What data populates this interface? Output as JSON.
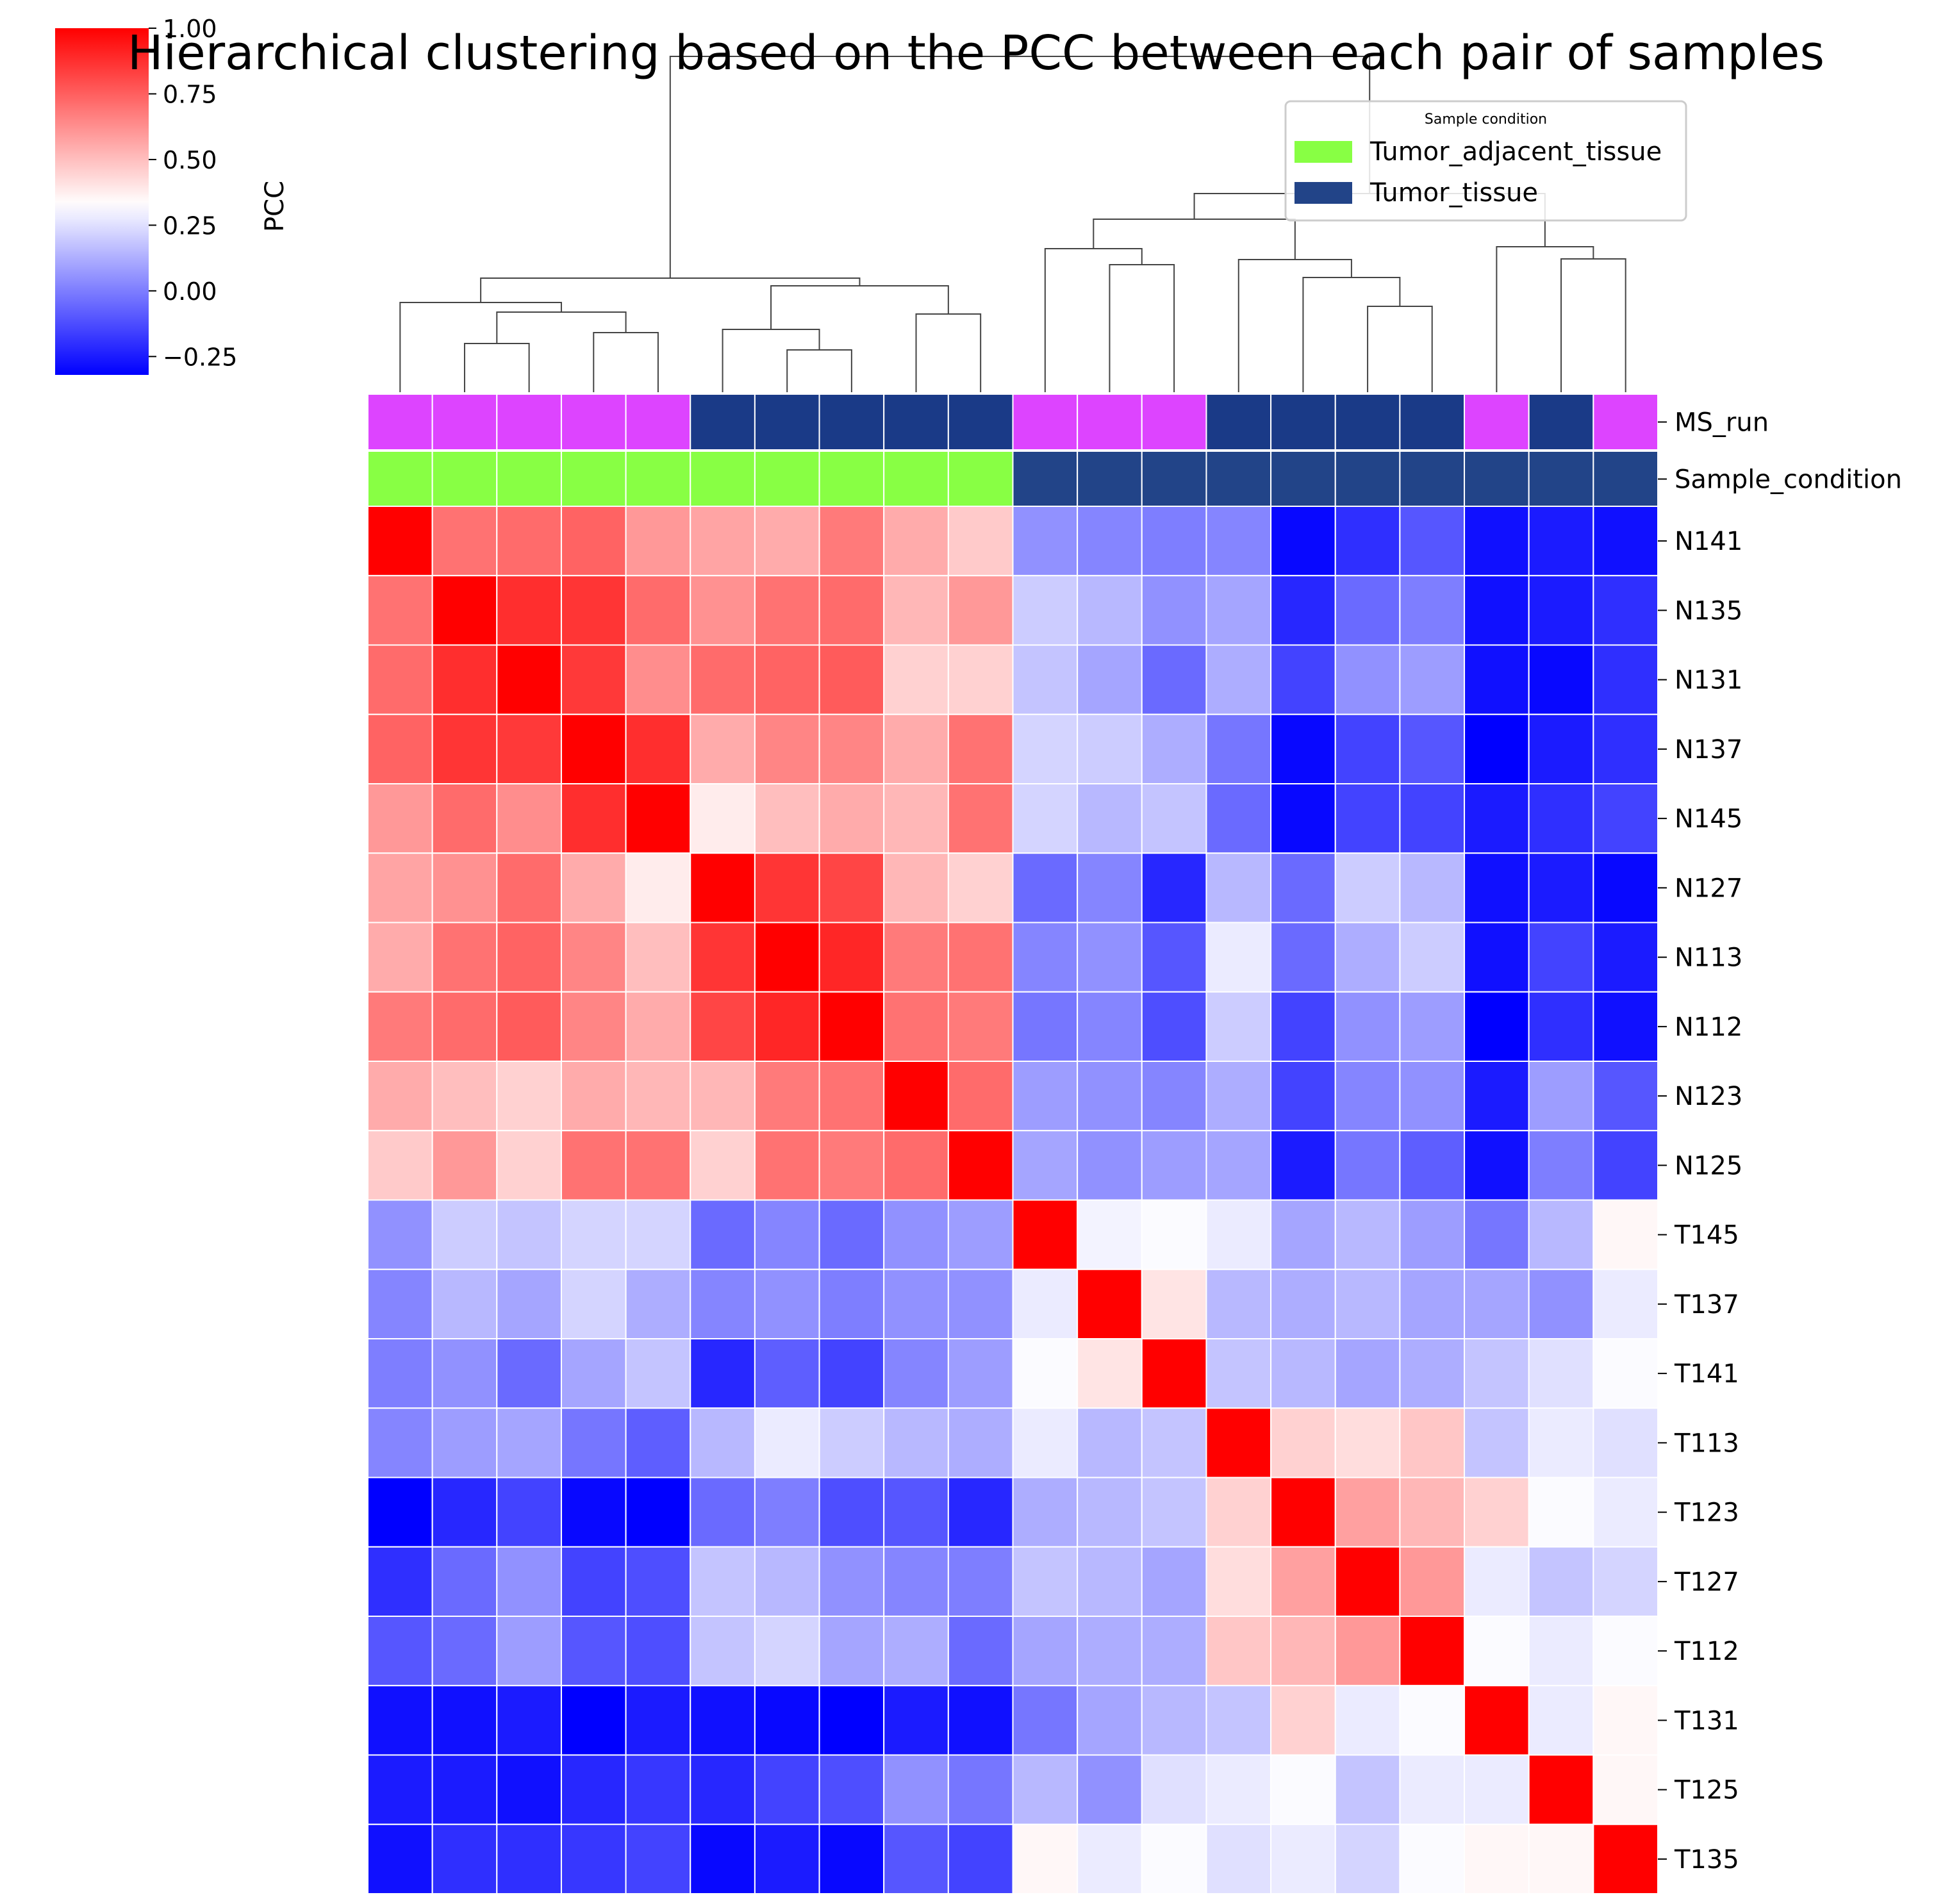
{
  "chart_data": {
    "type": "heatmap",
    "title": "Hierarchical clustering based on the PCC between each pair of samples",
    "samples": [
      "N141",
      "N135",
      "N131",
      "N137",
      "N145",
      "N127",
      "N113",
      "N112",
      "N123",
      "N125",
      "T145",
      "T137",
      "T141",
      "T113",
      "T123",
      "T127",
      "T112",
      "T131",
      "T125",
      "T135"
    ],
    "colorbar": {
      "label": "PCC",
      "vmin": -0.32,
      "vmax": 1.0,
      "center": 0.33,
      "ticks": [
        1.0,
        0.75,
        0.5,
        0.25,
        0.0,
        -0.25
      ],
      "tick_labels": [
        "1.00",
        "0.75",
        "0.50",
        "0.25",
        "0.00",
        "−0.25"
      ],
      "colors": [
        "#0000ff",
        "#ffffff",
        "#ff0000"
      ]
    },
    "annotation_rows": [
      {
        "name": "MS_run",
        "colors": [
          "#dd44ff",
          "#dd44ff",
          "#dd44ff",
          "#dd44ff",
          "#dd44ff",
          "#1a3a87",
          "#1a3a87",
          "#1a3a87",
          "#1a3a87",
          "#1a3a87",
          "#dd44ff",
          "#dd44ff",
          "#dd44ff",
          "#1a3a87",
          "#1a3a87",
          "#1a3a87",
          "#1a3a87",
          "#dd44ff",
          "#1a3a87",
          "#dd44ff"
        ]
      },
      {
        "name": "Sample_condition",
        "colors": [
          "#88ff44",
          "#88ff44",
          "#88ff44",
          "#88ff44",
          "#88ff44",
          "#88ff44",
          "#88ff44",
          "#88ff44",
          "#88ff44",
          "#88ff44",
          "#224488",
          "#224488",
          "#224488",
          "#224488",
          "#224488",
          "#224488",
          "#224488",
          "#224488",
          "#224488",
          "#224488"
        ]
      }
    ],
    "legend": {
      "title": "Sample condition",
      "placement": "top-right",
      "entries": [
        {
          "label": "Tumor_adjacent_tissue",
          "color": "#88ff44"
        },
        {
          "label": "Tumor_tissue",
          "color": "#224488"
        }
      ]
    },
    "values": [
      [
        1.0,
        0.7,
        0.72,
        0.74,
        0.6,
        0.57,
        0.55,
        0.68,
        0.55,
        0.47,
        0.05,
        0.02,
        0.0,
        0.02,
        -0.3,
        -0.2,
        -0.1,
        -0.28,
        -0.25,
        -0.28
      ],
      [
        0.7,
        1.0,
        0.88,
        0.86,
        0.72,
        0.62,
        0.7,
        0.72,
        0.52,
        0.6,
        0.2,
        0.15,
        0.05,
        0.1,
        -0.22,
        -0.05,
        0.0,
        -0.28,
        -0.25,
        -0.2
      ],
      [
        0.72,
        0.88,
        1.0,
        0.85,
        0.63,
        0.72,
        0.74,
        0.76,
        0.45,
        0.45,
        0.18,
        0.1,
        -0.05,
        0.12,
        -0.15,
        0.05,
        0.08,
        -0.28,
        -0.3,
        -0.2
      ],
      [
        0.74,
        0.86,
        0.85,
        1.0,
        0.88,
        0.55,
        0.65,
        0.65,
        0.55,
        0.7,
        0.22,
        0.2,
        0.12,
        -0.02,
        -0.3,
        -0.15,
        -0.1,
        -0.32,
        -0.25,
        -0.2
      ],
      [
        0.6,
        0.72,
        0.63,
        0.88,
        1.0,
        0.38,
        0.5,
        0.55,
        0.52,
        0.7,
        0.22,
        0.15,
        0.18,
        -0.05,
        -0.3,
        -0.15,
        -0.15,
        -0.25,
        -0.2,
        -0.15
      ],
      [
        0.57,
        0.62,
        0.72,
        0.55,
        0.38,
        1.0,
        0.86,
        0.82,
        0.52,
        0.45,
        -0.05,
        0.02,
        -0.22,
        0.15,
        -0.05,
        0.2,
        0.15,
        -0.28,
        -0.25,
        -0.3
      ],
      [
        0.55,
        0.7,
        0.74,
        0.65,
        0.5,
        0.86,
        1.0,
        0.9,
        0.68,
        0.7,
        0.02,
        0.05,
        -0.1,
        0.28,
        -0.05,
        0.12,
        0.2,
        -0.28,
        -0.15,
        -0.25
      ],
      [
        0.68,
        0.72,
        0.76,
        0.65,
        0.55,
        0.82,
        0.9,
        1.0,
        0.7,
        0.68,
        -0.02,
        0.02,
        -0.12,
        0.2,
        -0.15,
        0.05,
        0.08,
        -0.32,
        -0.2,
        -0.28
      ],
      [
        0.55,
        0.5,
        0.45,
        0.55,
        0.52,
        0.52,
        0.68,
        0.7,
        1.0,
        0.72,
        0.08,
        0.05,
        0.02,
        0.12,
        -0.15,
        0.02,
        0.05,
        -0.25,
        0.08,
        -0.1
      ],
      [
        0.47,
        0.6,
        0.45,
        0.7,
        0.7,
        0.45,
        0.7,
        0.68,
        0.72,
        1.0,
        0.1,
        0.05,
        0.08,
        0.1,
        -0.25,
        -0.02,
        -0.08,
        -0.28,
        0.0,
        -0.15
      ],
      [
        0.05,
        0.2,
        0.18,
        0.22,
        0.22,
        -0.05,
        0.02,
        -0.05,
        0.05,
        0.08,
        1.0,
        0.3,
        0.32,
        0.28,
        0.1,
        0.15,
        0.08,
        -0.02,
        0.15,
        0.35
      ],
      [
        0.02,
        0.15,
        0.1,
        0.22,
        0.12,
        0.02,
        0.05,
        0.0,
        0.05,
        0.05,
        0.28,
        1.0,
        0.4,
        0.15,
        0.12,
        0.15,
        0.1,
        0.1,
        0.05,
        0.28
      ],
      [
        0.0,
        0.05,
        -0.05,
        0.1,
        0.18,
        -0.22,
        -0.08,
        -0.15,
        0.02,
        0.08,
        0.32,
        0.4,
        1.0,
        0.18,
        0.15,
        0.1,
        0.12,
        0.18,
        0.25,
        0.32
      ],
      [
        0.02,
        0.08,
        0.1,
        -0.02,
        -0.08,
        0.15,
        0.28,
        0.2,
        0.15,
        0.12,
        0.28,
        0.15,
        0.18,
        1.0,
        0.45,
        0.42,
        0.48,
        0.18,
        0.28,
        0.25
      ],
      [
        -0.32,
        -0.22,
        -0.15,
        -0.3,
        -0.32,
        -0.05,
        0.0,
        -0.12,
        -0.1,
        -0.22,
        0.12,
        0.15,
        0.18,
        0.45,
        1.0,
        0.58,
        0.52,
        0.45,
        0.32,
        0.28
      ],
      [
        -0.2,
        -0.05,
        0.05,
        -0.15,
        -0.12,
        0.18,
        0.15,
        0.05,
        0.02,
        0.0,
        0.18,
        0.15,
        0.1,
        0.42,
        0.58,
        1.0,
        0.6,
        0.28,
        0.18,
        0.22
      ],
      [
        -0.1,
        -0.05,
        0.08,
        -0.1,
        -0.12,
        0.18,
        0.22,
        0.1,
        0.12,
        -0.05,
        0.1,
        0.12,
        0.12,
        0.48,
        0.52,
        0.6,
        1.0,
        0.32,
        0.28,
        0.32
      ],
      [
        -0.28,
        -0.28,
        -0.25,
        -0.32,
        -0.25,
        -0.28,
        -0.3,
        -0.32,
        -0.25,
        -0.28,
        -0.02,
        0.1,
        0.15,
        0.18,
        0.45,
        0.28,
        0.32,
        1.0,
        0.28,
        0.35
      ],
      [
        -0.25,
        -0.25,
        -0.28,
        -0.22,
        -0.18,
        -0.22,
        -0.15,
        -0.12,
        0.05,
        -0.02,
        0.15,
        0.05,
        0.25,
        0.28,
        0.32,
        0.18,
        0.28,
        0.28,
        1.0,
        0.35
      ],
      [
        -0.28,
        -0.2,
        -0.2,
        -0.18,
        -0.15,
        -0.3,
        -0.25,
        -0.3,
        -0.1,
        -0.15,
        0.35,
        0.28,
        0.32,
        0.25,
        0.28,
        0.22,
        0.32,
        0.35,
        0.35,
        1.0
      ]
    ]
  }
}
